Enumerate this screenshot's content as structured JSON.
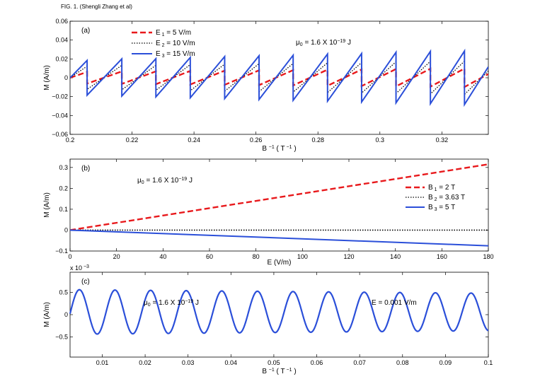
{
  "figure_caption": "FIG. 1. (Shengli Zhang et al)",
  "chart_data": [
    {
      "type": "line",
      "panel_label": "(a)",
      "xlim": [
        0.2,
        0.335
      ],
      "ylim": [
        -0.06,
        0.06
      ],
      "xticks": [
        "0.2",
        "0.22",
        "0.24",
        "0.26",
        "0.28",
        "0.3",
        "0.32"
      ],
      "xtick_values": [
        0.2,
        0.22,
        0.24,
        0.26,
        0.28,
        0.3,
        0.32
      ],
      "yticks": [
        "−0.06",
        "−0.04",
        "−0.02",
        "0",
        "0.02",
        "0.04",
        "0.06"
      ],
      "ytick_values": [
        -0.06,
        -0.04,
        -0.02,
        0,
        0.02,
        0.04,
        0.06
      ],
      "xlabel": {
        "base": "B",
        "sup": "−1",
        "units": "( T",
        "units_sup": "−1",
        "units_close": ")"
      },
      "ylabel": "M (A/m)",
      "annotation": {
        "base": "μ",
        "sub": "0",
        "text": " = 1.6 X 10",
        "sup": "−19",
        "units": " J"
      },
      "sawtooth_period": 0.011,
      "sawtooth_jumps": [
        0.2055,
        0.2167,
        0.2277,
        0.2388,
        0.2499,
        0.261,
        0.272,
        0.2831,
        0.2941,
        0.3052,
        0.3163,
        0.3273
      ],
      "legend_position": "top-left",
      "series": [
        {
          "name_base": "E",
          "name_sub": "1",
          "name_rest": " =  5  V/m",
          "amplitude_start": 0.006,
          "amplitude_end": 0.01,
          "color": "#e8191c",
          "style": "dashed"
        },
        {
          "name_base": "E",
          "name_sub": "2",
          "name_rest": " = 10 V/m",
          "amplitude_start": 0.012,
          "amplitude_end": 0.018,
          "color": "#000000",
          "style": "dotted"
        },
        {
          "name_base": "E",
          "name_sub": "3",
          "name_rest": " = 15 V/m",
          "amplitude_start": 0.018,
          "amplitude_end": 0.029,
          "color": "#2b4fd9",
          "style": "solid"
        }
      ]
    },
    {
      "type": "line",
      "panel_label": "(b)",
      "xlim": [
        0,
        180
      ],
      "ylim": [
        -0.1,
        0.34
      ],
      "xticks": [
        "0",
        "20",
        "40",
        "60",
        "80",
        "100",
        "120",
        "140",
        "160",
        "180"
      ],
      "xtick_values": [
        0,
        20,
        40,
        60,
        80,
        100,
        120,
        140,
        160,
        180
      ],
      "yticks": [
        "−0.1",
        "0",
        "0.1",
        "0.2",
        "0.3"
      ],
      "ytick_values": [
        -0.1,
        0,
        0.1,
        0.2,
        0.3
      ],
      "xlabel": "E (V/m)",
      "ylabel": "M (A/m)",
      "annotation": {
        "base": "μ",
        "sub": "0",
        "text": " = 1.6 X 10",
        "sup": "−19",
        "units": " J"
      },
      "legend_position": "right",
      "series": [
        {
          "name_base": "B",
          "name_sub": "1",
          "name_rest": " = 2 T",
          "x": [
            0,
            180
          ],
          "y": [
            0,
            0.315
          ],
          "color": "#e8191c",
          "style": "dashed"
        },
        {
          "name_base": "B",
          "name_sub": "2",
          "name_rest": " = 3.63 T",
          "x": [
            0,
            180
          ],
          "y": [
            0,
            0
          ],
          "color": "#000000",
          "style": "dotted"
        },
        {
          "name_base": "B",
          "name_sub": "3",
          "name_rest": " = 5 T",
          "x": [
            0,
            180
          ],
          "y": [
            0,
            -0.075
          ],
          "color": "#2b4fd9",
          "style": "solid"
        }
      ]
    },
    {
      "type": "line",
      "panel_label": "(c)",
      "xlim": [
        0.0025,
        0.1
      ],
      "ylim": [
        -0.95,
        0.95
      ],
      "y_multiplier": "x 10",
      "y_multiplier_exp": "−3",
      "xticks": [
        "0.01",
        "0.02",
        "0.03",
        "0.04",
        "0.05",
        "0.06",
        "0.07",
        "0.08",
        "0.09",
        "0.1"
      ],
      "xtick_values": [
        0.01,
        0.02,
        0.03,
        0.04,
        0.05,
        0.06,
        0.07,
        0.08,
        0.09,
        0.1
      ],
      "yticks": [
        "−0.5",
        "0",
        "0.5"
      ],
      "ytick_values": [
        -0.5,
        0,
        0.5
      ],
      "xlabel": {
        "base": "B",
        "sup": "−1",
        "units": "( T",
        "units_sup": "−1",
        "units_close": ")"
      },
      "ylabel": "M (A/m)",
      "annotation": {
        "base": "μ",
        "sub": "0",
        "text": " = 1.6 X 10",
        "sup": "−19",
        "units": " J"
      },
      "annotation2": "E = 0.001 V/m",
      "series": [
        {
          "period": 0.0083,
          "phase_start": 0.0026,
          "amplitude_start": 0.5,
          "amplitude_end": 0.42,
          "center": 0.06,
          "color": "#2b4fd9",
          "style": "solid"
        }
      ]
    }
  ]
}
